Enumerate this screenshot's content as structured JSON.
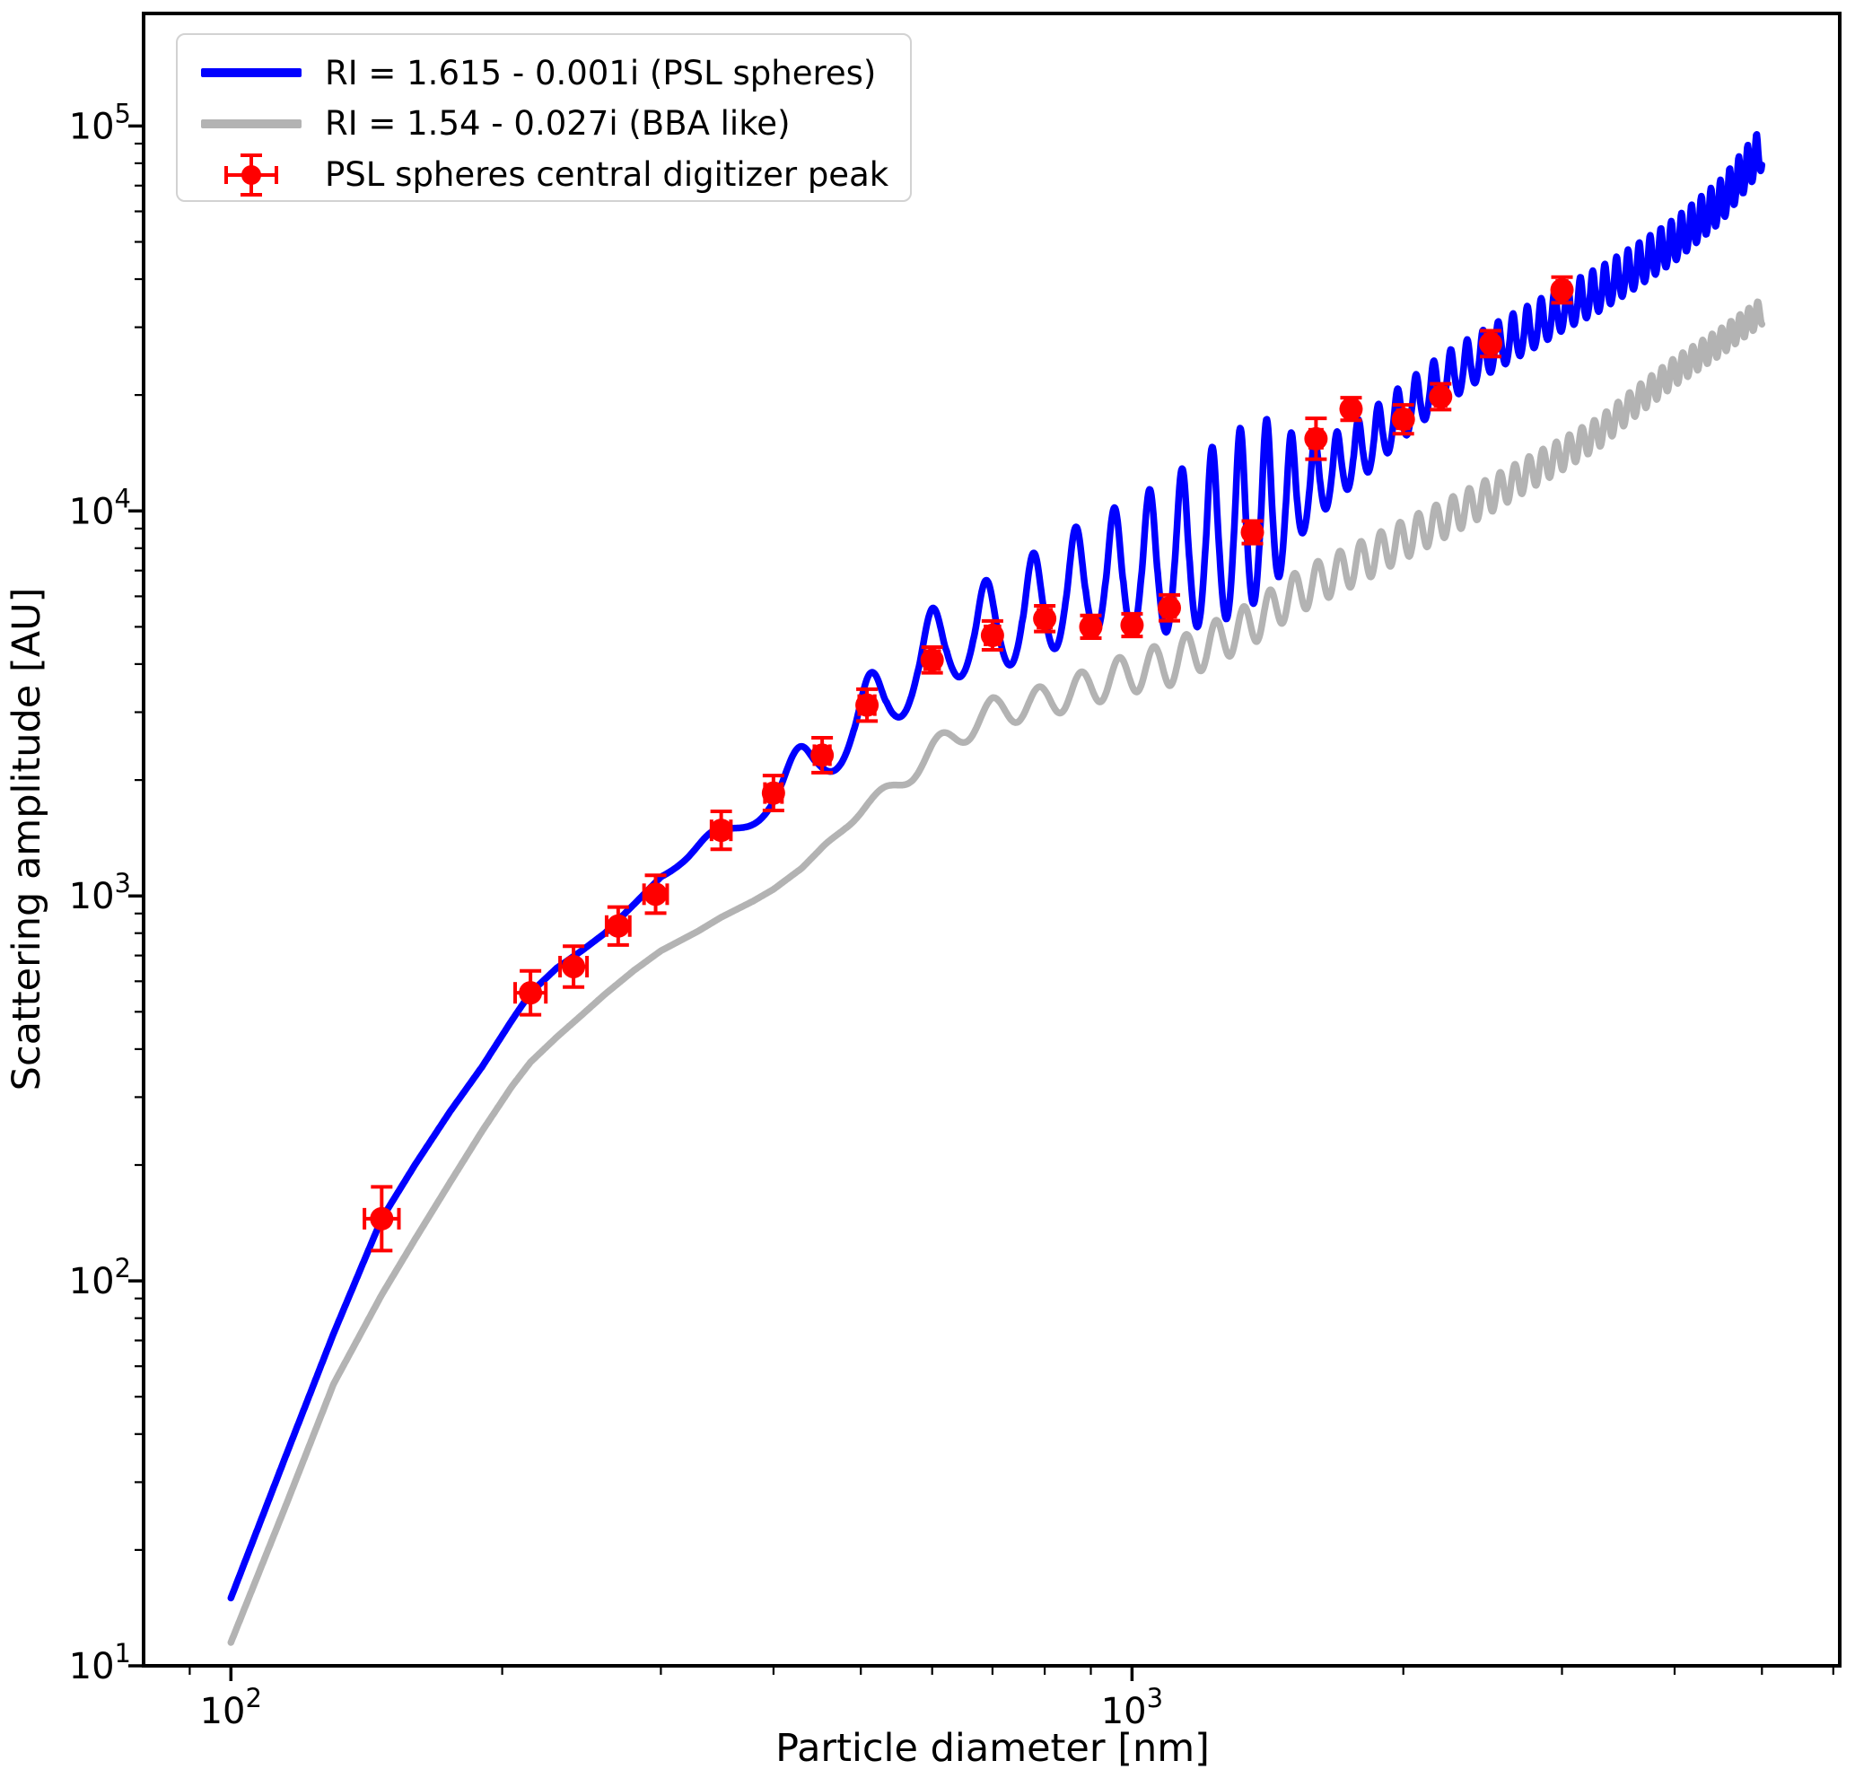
{
  "figure": {
    "background": "#ffffff"
  },
  "legend": {
    "position": "upper-left",
    "items": [
      {
        "label": "RI =  1.615 - 0.001i (PSL spheres)",
        "type": "line",
        "color": "#0000ff"
      },
      {
        "label": "RI =  1.54 - 0.027i (BBA like)",
        "type": "line",
        "color": "#b3b3b3"
      },
      {
        "label": "PSL spheres central digitizer peak",
        "type": "errorbar",
        "color": "#ff0000"
      }
    ]
  },
  "chart_data": {
    "type": "line",
    "title": "",
    "xlabel": "Particle diameter [nm]",
    "ylabel": "Scattering amplitude [AU]",
    "xscale": "log",
    "yscale": "log",
    "xlim": [
      80,
      6100
    ],
    "ylim": [
      10,
      196000
    ],
    "grid": false,
    "legend_position": "upper left",
    "x_axis": {
      "major_ticks": [
        {
          "value": 100,
          "mantissa": "10",
          "exponent": "2"
        },
        {
          "value": 1000,
          "mantissa": "10",
          "exponent": "3"
        }
      ],
      "minor_ticks": [
        90,
        200,
        300,
        400,
        500,
        600,
        700,
        800,
        900,
        2000,
        3000,
        4000,
        5000,
        6000
      ]
    },
    "y_axis": {
      "major_ticks": [
        {
          "value": 10,
          "mantissa": "10",
          "exponent": "1"
        },
        {
          "value": 100,
          "mantissa": "10",
          "exponent": "2"
        },
        {
          "value": 1000,
          "mantissa": "10",
          "exponent": "3"
        },
        {
          "value": 10000,
          "mantissa": "10",
          "exponent": "4"
        },
        {
          "value": 100000,
          "mantissa": "10",
          "exponent": "5"
        }
      ],
      "minor_ticks": [
        20,
        30,
        40,
        50,
        60,
        70,
        80,
        90,
        200,
        300,
        400,
        500,
        600,
        700,
        800,
        900,
        2000,
        3000,
        4000,
        5000,
        6000,
        7000,
        8000,
        9000,
        20000,
        30000,
        40000,
        50000,
        60000,
        70000,
        80000,
        90000
      ]
    },
    "series": [
      {
        "name": "RI =  1.615 - 0.001i (PSL spheres)",
        "kind": "mie-curve",
        "color": "#0000ff",
        "width": 7.5,
        "style": "spiky",
        "model": {
          "range": [
            100,
            5000
          ],
          "baseline": [
            [
              100,
              15
            ],
            [
              115,
              35
            ],
            [
              130,
              73
            ],
            [
              147,
              145
            ],
            [
              160,
              200
            ],
            [
              175,
              275
            ],
            [
              190,
              360
            ],
            [
              205,
              475
            ],
            [
              215,
              560
            ],
            [
              230,
              650
            ],
            [
              245,
              720
            ],
            [
              260,
              800
            ],
            [
              280,
              950
            ],
            [
              300,
              1120
            ],
            [
              330,
              1300
            ],
            [
              350,
              1430
            ],
            [
              380,
              1650
            ],
            [
              400,
              1800
            ],
            [
              430,
              2080
            ],
            [
              455,
              2300
            ],
            [
              480,
              2550
            ],
            [
              508,
              2900
            ],
            [
              540,
              3250
            ],
            [
              570,
              3700
            ],
            [
              600,
              4200
            ],
            [
              650,
              4550
            ],
            [
              700,
              4800
            ],
            [
              750,
              5100
            ],
            [
              800,
              5500
            ],
            [
              850,
              5900
            ],
            [
              900,
              6300
            ],
            [
              1000,
              6600
            ],
            [
              1100,
              7000
            ],
            [
              1200,
              7600
            ],
            [
              1360,
              8800
            ],
            [
              1500,
              10200
            ],
            [
              1600,
              11500
            ],
            [
              1800,
              14000
            ],
            [
              2000,
              17500
            ],
            [
              2200,
              21000
            ],
            [
              2500,
              25500
            ],
            [
              2800,
              29500
            ],
            [
              3000,
              32500
            ],
            [
              3300,
              36500
            ],
            [
              3600,
              41500
            ],
            [
              4000,
              49000
            ],
            [
              4500,
              62000
            ],
            [
              5000,
              85000
            ]
          ],
          "amplitude": [
            [
              300,
              0
            ],
            [
              420,
              0.18
            ],
            [
              500,
              0.28
            ],
            [
              600,
              0.33
            ],
            [
              700,
              0.4
            ],
            [
              800,
              0.48
            ],
            [
              900,
              0.52
            ],
            [
              1000,
              0.62
            ],
            [
              1150,
              0.8
            ],
            [
              1300,
              0.95
            ],
            [
              1430,
              0.85
            ],
            [
              1550,
              0.38
            ],
            [
              1700,
              0.27
            ],
            [
              2000,
              0.22
            ],
            [
              2500,
              0.19
            ],
            [
              3000,
              0.18
            ],
            [
              4000,
              0.17
            ],
            [
              5000,
              0.17
            ]
          ],
          "oscillation": {
            "period_base": 85,
            "period_slope": 0.005,
            "phase_offset": -1.38,
            "peak_sharpness": 1.35,
            "valley_softness": 0.9,
            "valley_depth": 0.6
          }
        }
      },
      {
        "name": "RI =  1.54 - 0.027i (BBA like)",
        "kind": "mie-curve",
        "color": "#b3b3b3",
        "width": 7.5,
        "style": "sine",
        "model": {
          "range": [
            100,
            5000
          ],
          "baseline": [
            [
              100,
              11.5
            ],
            [
              115,
              26
            ],
            [
              130,
              54
            ],
            [
              147,
              92
            ],
            [
              160,
              128
            ],
            [
              175,
              180
            ],
            [
              190,
              245
            ],
            [
              205,
              320
            ],
            [
              215,
              370
            ],
            [
              230,
              430
            ],
            [
              245,
              490
            ],
            [
              260,
              555
            ],
            [
              280,
              640
            ],
            [
              300,
              720
            ],
            [
              330,
              810
            ],
            [
              350,
              880
            ],
            [
              380,
              970
            ],
            [
              400,
              1040
            ],
            [
              430,
              1180
            ],
            [
              455,
              1350
            ],
            [
              480,
              1520
            ],
            [
              508,
              1700
            ],
            [
              540,
              1900
            ],
            [
              570,
              2120
            ],
            [
              600,
              2350
            ],
            [
              650,
              2700
            ],
            [
              700,
              3000
            ],
            [
              750,
              3100
            ],
            [
              800,
              3200
            ],
            [
              850,
              3350
            ],
            [
              900,
              3500
            ],
            [
              1000,
              3800
            ],
            [
              1100,
              4000
            ],
            [
              1200,
              4400
            ],
            [
              1360,
              5100
            ],
            [
              1500,
              6000
            ],
            [
              1600,
              6500
            ],
            [
              1800,
              7400
            ],
            [
              2000,
              8400
            ],
            [
              2200,
              9400
            ],
            [
              2500,
              11000
            ],
            [
              2800,
              12800
            ],
            [
              3000,
              14000
            ],
            [
              3300,
              16000
            ],
            [
              3600,
              19000
            ],
            [
              4000,
              23000
            ],
            [
              4500,
              27500
            ],
            [
              5000,
              33000
            ]
          ],
          "amplitude": [
            [
              450,
              0
            ],
            [
              600,
              0.08
            ],
            [
              800,
              0.1
            ],
            [
              1100,
              0.14
            ],
            [
              1800,
              0.13
            ],
            [
              2500,
              0.11
            ],
            [
              3500,
              0.09
            ],
            [
              5000,
              0.08
            ]
          ],
          "oscillation": {
            "period_base": 85,
            "period_slope": 0.005,
            "phase_offset": -2.2
          }
        }
      },
      {
        "name": "PSL spheres central digitizer peak",
        "kind": "errorbar-points",
        "color": "#ff0000",
        "marker": "circle",
        "marker_radius": 13,
        "points_format": [
          "diameter_nm",
          "amplitude_AU",
          "yerr_rel",
          "xerr_rel"
        ],
        "points": [
          [
            147,
            145,
            0.21,
            0.045
          ],
          [
            215,
            560,
            0.14,
            0.04
          ],
          [
            240,
            655,
            0.13,
            0.035
          ],
          [
            269,
            835,
            0.12,
            0.03
          ],
          [
            296,
            1010,
            0.12,
            0.03
          ],
          [
            350,
            1480,
            0.12,
            0.025
          ],
          [
            400,
            1850,
            0.11,
            0.022
          ],
          [
            453,
            2320,
            0.11,
            0.02
          ],
          [
            508,
            3130,
            0.1,
            0.02
          ],
          [
            600,
            4100,
            0.08,
            0.018
          ],
          [
            700,
            4750,
            0.09,
            0.018
          ],
          [
            800,
            5250,
            0.08,
            0.016
          ],
          [
            900,
            5000,
            0.07,
            0.016
          ],
          [
            1000,
            5050,
            0.07,
            0.015
          ],
          [
            1100,
            5600,
            0.08,
            0.015
          ],
          [
            1360,
            8800,
            0.07,
            0.015
          ],
          [
            1600,
            15400,
            0.13,
            0.015
          ],
          [
            1750,
            18400,
            0.07,
            0.014
          ],
          [
            2000,
            17300,
            0.09,
            0.014
          ],
          [
            2200,
            19800,
            0.08,
            0.013
          ],
          [
            2500,
            27200,
            0.08,
            0.013
          ],
          [
            3000,
            37500,
            0.08,
            0.012
          ]
        ]
      }
    ]
  }
}
